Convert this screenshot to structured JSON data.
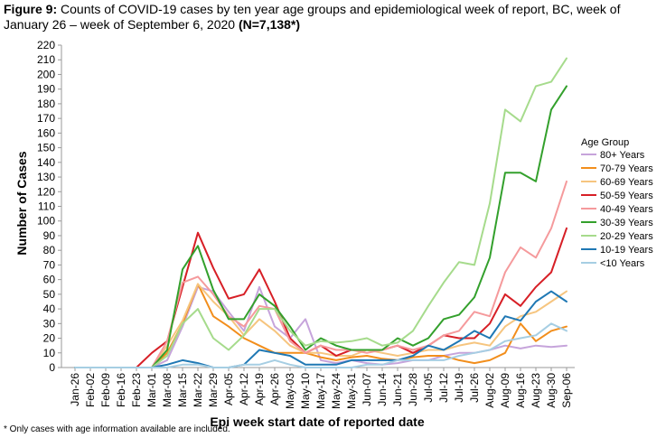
{
  "figure": {
    "title_label": "Figure 9:",
    "title_text": "Counts of COVID-19 cases by ten year age groups and epidemiological week of report, BC, week of January 26 – week of September 6, 2020",
    "title_n": "(N=7,138*)",
    "footnote": "* Only cases with  age information  available are  included."
  },
  "chart_data": {
    "type": "line",
    "title": "Counts of COVID-19 cases by ten year age groups and epidemiological week of report, BC, week of January 26 – week of September 6, 2020 (N=7,138*)",
    "xlabel": "Epi week start date of reported date",
    "ylabel": "Number of Cases",
    "ylim": [
      0,
      220
    ],
    "ytick_step": 10,
    "legend_title": "Age Group",
    "legend_position": "right",
    "grid": false,
    "x": [
      "Jan-26",
      "Feb-02",
      "Feb-09",
      "Feb-16",
      "Feb-23",
      "Mar-01",
      "Mar-08",
      "Mar-15",
      "Mar-22",
      "Mar-29",
      "Apr-05",
      "Apr-12",
      "Apr-19",
      "Apr-26",
      "May-03",
      "May-10",
      "May-17",
      "May-24",
      "May-31",
      "Jun-07",
      "Jun-14",
      "Jun-21",
      "Jun-28",
      "Jul-05",
      "Jul-12",
      "Jul-19",
      "Jul-26",
      "Aug-02",
      "Aug-09",
      "Aug-16",
      "Aug-23",
      "Aug-30",
      "Sep-06"
    ],
    "series": [
      {
        "name": "80+ Years",
        "color": "#c6a4db",
        "values": [
          0,
          0,
          0,
          0,
          0,
          0,
          5,
          28,
          55,
          52,
          38,
          25,
          55,
          28,
          20,
          33,
          5,
          3,
          5,
          3,
          2,
          3,
          5,
          5,
          8,
          10,
          10,
          12,
          15,
          13,
          15,
          14,
          15
        ]
      },
      {
        "name": "70-79 Years",
        "color": "#f28e1c",
        "values": [
          0,
          0,
          0,
          0,
          0,
          0,
          10,
          30,
          57,
          35,
          28,
          20,
          15,
          10,
          10,
          10,
          7,
          5,
          7,
          8,
          6,
          5,
          7,
          8,
          8,
          5,
          3,
          5,
          10,
          30,
          18,
          25,
          28
        ]
      },
      {
        "name": "60-69 Years",
        "color": "#f6c57f",
        "values": [
          0,
          0,
          0,
          0,
          0,
          0,
          15,
          32,
          57,
          45,
          35,
          22,
          33,
          25,
          15,
          10,
          10,
          8,
          8,
          12,
          10,
          8,
          10,
          12,
          12,
          15,
          17,
          15,
          28,
          35,
          38,
          45,
          52
        ]
      },
      {
        "name": "50-59 Years",
        "color": "#d71f26",
        "values": [
          0,
          0,
          0,
          0,
          0,
          10,
          18,
          55,
          92,
          68,
          47,
          50,
          67,
          45,
          20,
          10,
          15,
          8,
          12,
          12,
          12,
          15,
          10,
          15,
          22,
          20,
          20,
          30,
          50,
          42,
          55,
          65,
          95
        ]
      },
      {
        "name": "40-49 Years",
        "color": "#f59a9c",
        "values": [
          0,
          0,
          0,
          0,
          0,
          0,
          18,
          58,
          62,
          50,
          35,
          28,
          42,
          40,
          18,
          10,
          15,
          12,
          12,
          10,
          12,
          15,
          12,
          15,
          22,
          25,
          38,
          35,
          65,
          82,
          75,
          95,
          127
        ]
      },
      {
        "name": "30-39 Years",
        "color": "#33a02c",
        "values": [
          0,
          0,
          0,
          0,
          0,
          0,
          12,
          67,
          83,
          53,
          33,
          33,
          50,
          42,
          28,
          12,
          20,
          15,
          12,
          12,
          12,
          20,
          15,
          20,
          33,
          36,
          48,
          75,
          133,
          133,
          127,
          176,
          192
        ]
      },
      {
        "name": "20-29 Years",
        "color": "#a6db8c",
        "values": [
          0,
          0,
          0,
          0,
          0,
          0,
          8,
          30,
          40,
          20,
          12,
          22,
          40,
          40,
          25,
          15,
          18,
          17,
          18,
          20,
          15,
          17,
          25,
          42,
          58,
          72,
          70,
          112,
          176,
          168,
          192,
          195,
          211
        ]
      },
      {
        "name": "10-19 Years",
        "color": "#1f78b4",
        "values": [
          0,
          0,
          0,
          0,
          0,
          0,
          2,
          5,
          3,
          0,
          0,
          2,
          12,
          10,
          8,
          2,
          2,
          2,
          5,
          5,
          5,
          5,
          8,
          15,
          12,
          18,
          25,
          20,
          35,
          32,
          45,
          52,
          45
        ]
      },
      {
        "name": "<10 Years",
        "color": "#a6cee3",
        "values": [
          0,
          0,
          0,
          0,
          0,
          0,
          0,
          2,
          2,
          0,
          0,
          2,
          2,
          5,
          2,
          0,
          0,
          0,
          0,
          2,
          2,
          5,
          5,
          5,
          5,
          8,
          10,
          12,
          18,
          20,
          22,
          30,
          25
        ]
      }
    ]
  }
}
